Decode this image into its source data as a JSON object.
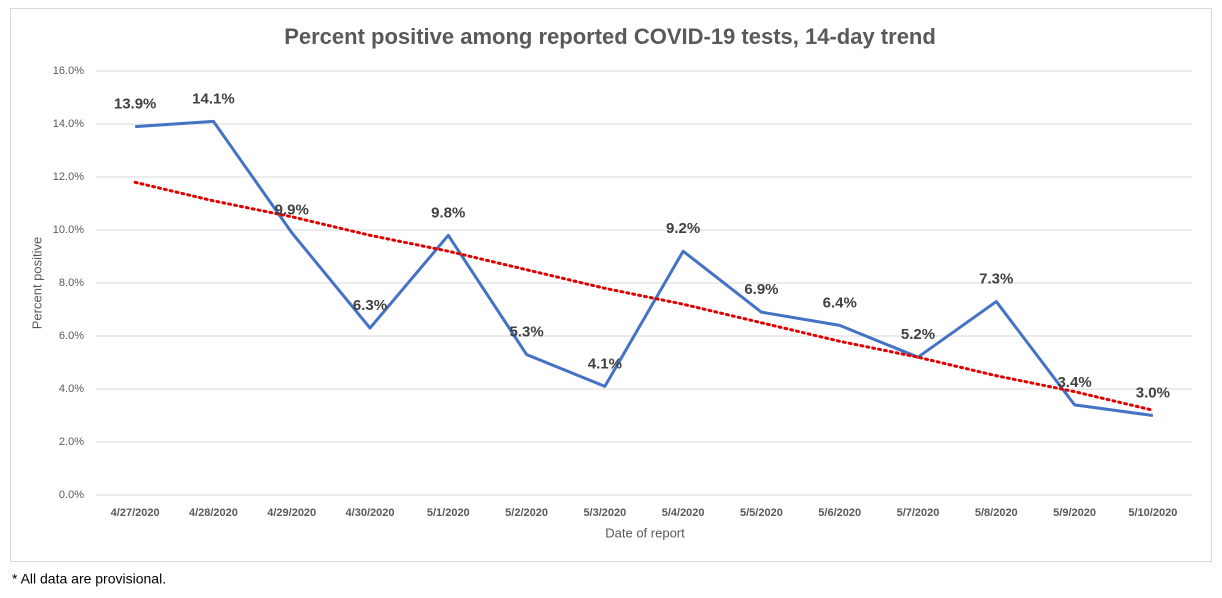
{
  "chart_data": {
    "type": "line",
    "title": "Percent positive among reported COVID-19 tests, 14-day trend",
    "x_label": "Date of report",
    "y_label": "Percent positive",
    "footnote": "* All data are provisional.",
    "categories": [
      "4/27/2020",
      "4/28/2020",
      "4/29/2020",
      "4/30/2020",
      "5/1/2020",
      "5/2/2020",
      "5/3/2020",
      "5/4/2020",
      "5/5/2020",
      "5/6/2020",
      "5/7/2020",
      "5/8/2020",
      "5/9/2020",
      "5/10/2020"
    ],
    "series": [
      {
        "color": "#4472c4",
        "values": [
          13.9,
          14.1,
          9.9,
          6.3,
          9.8,
          5.3,
          4.1,
          9.2,
          6.9,
          6.4,
          5.2,
          7.3,
          3.4,
          3.0
        ],
        "value_labels": [
          "13.9%",
          "14.1%",
          "9.9%",
          "6.3%",
          "9.8%",
          "5.3%",
          "4.1%",
          "9.2%",
          "6.9%",
          "6.4%",
          "5.2%",
          "7.3%",
          "3.4%",
          "3.0%"
        ]
      }
    ],
    "trendline": {
      "color": "#e00000",
      "style": "dotted",
      "values": [
        11.8,
        11.1,
        10.5,
        9.8,
        9.2,
        8.5,
        7.8,
        7.2,
        6.5,
        5.8,
        5.2,
        4.5,
        3.9,
        3.2
      ]
    },
    "ylim": [
      0,
      16
    ],
    "yticks": [
      {
        "value": 0,
        "label": "0.0%"
      },
      {
        "value": 2,
        "label": "2.0%"
      },
      {
        "value": 4,
        "label": "4.0%"
      },
      {
        "value": 6,
        "label": "6.0%"
      },
      {
        "value": 8,
        "label": "8.0%"
      },
      {
        "value": 10,
        "label": "10.0%"
      },
      {
        "value": 12,
        "label": "12.0%"
      },
      {
        "value": 14,
        "label": "14.0%"
      },
      {
        "value": 16,
        "label": "16.0%"
      }
    ],
    "grid": true
  }
}
